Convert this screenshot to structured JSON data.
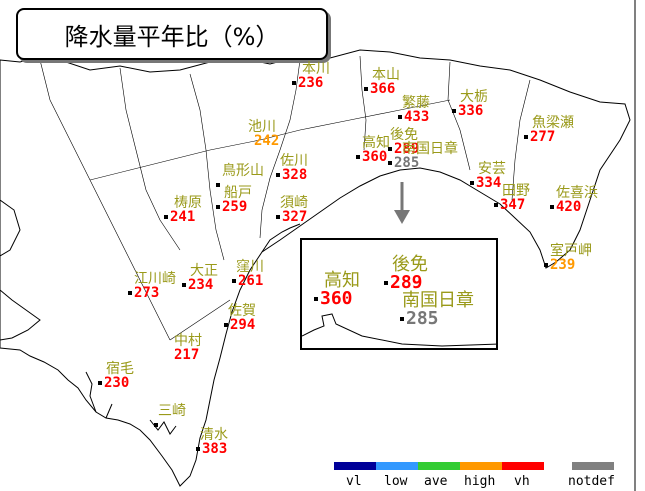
{
  "title": "降水量平年比（%）",
  "stations": [
    {
      "id": "honkawa",
      "name": "本川",
      "value": "236",
      "cat": "vh"
    },
    {
      "id": "motoyama",
      "name": "本山",
      "value": "366",
      "cat": "vh"
    },
    {
      "id": "shigetou",
      "name": "繁藤",
      "value": "433",
      "cat": "vh"
    },
    {
      "id": "otochi",
      "name": "大栃",
      "value": "336",
      "cat": "vh"
    },
    {
      "id": "ikegawa",
      "name": "池川",
      "value": "242",
      "cat": "high"
    },
    {
      "id": "kochi_main",
      "name": "高知",
      "value": "360",
      "cat": "vh"
    },
    {
      "id": "gomen_main",
      "name": "後免",
      "value": "289",
      "cat": "vh"
    },
    {
      "id": "nankoku_main",
      "name": "南国日章",
      "value": "285",
      "cat": "nd"
    },
    {
      "id": "yanase",
      "name": "魚梁瀬",
      "value": "277",
      "cat": "vh"
    },
    {
      "id": "torigatayama",
      "name": "鳥形山",
      "value": "",
      "cat": "vh"
    },
    {
      "id": "sagawa",
      "name": "佐川",
      "value": "328",
      "cat": "vh"
    },
    {
      "id": "nosato",
      "name": "船戸",
      "value": "259",
      "cat": "vh"
    },
    {
      "id": "yusuhara",
      "name": "梼原",
      "value": "241",
      "cat": "vh"
    },
    {
      "id": "susaki",
      "name": "須崎",
      "value": "327",
      "cat": "vh"
    },
    {
      "id": "aki",
      "name": "安芸",
      "value": "334",
      "cat": "vh"
    },
    {
      "id": "tano",
      "name": "田野",
      "value": "347",
      "cat": "vh"
    },
    {
      "id": "sakihama",
      "name": "佐喜浜",
      "value": "420",
      "cat": "vh"
    },
    {
      "id": "muroto",
      "name": "室戸岬",
      "value": "239",
      "cat": "high"
    },
    {
      "id": "ekawasaki",
      "name": "江川崎",
      "value": "273",
      "cat": "vh"
    },
    {
      "id": "taisho",
      "name": "大正",
      "value": "234",
      "cat": "vh"
    },
    {
      "id": "kubokawa",
      "name": "窪川",
      "value": "261",
      "cat": "vh"
    },
    {
      "id": "saga",
      "name": "佐賀",
      "value": "294",
      "cat": "vh"
    },
    {
      "id": "nakamura",
      "name": "中村",
      "value": "217",
      "cat": "vh"
    },
    {
      "id": "sukumo",
      "name": "宿毛",
      "value": "230",
      "cat": "vh"
    },
    {
      "id": "misaki",
      "name": "三崎",
      "value": "",
      "cat": "vh"
    },
    {
      "id": "shimizu",
      "name": "清水",
      "value": "383",
      "cat": "vh"
    }
  ],
  "inset": [
    {
      "id": "kochi",
      "name": "高知",
      "value": "360",
      "cat": "vh"
    },
    {
      "id": "gomen",
      "name": "後免",
      "value": "289",
      "cat": "vh"
    },
    {
      "id": "nankoku",
      "name": "南国日章",
      "value": "285",
      "cat": "nd"
    }
  ],
  "legend": [
    {
      "label": "vl",
      "color": "#000099"
    },
    {
      "label": "low",
      "color": "#3399ff"
    },
    {
      "label": "ave",
      "color": "#33cc33"
    },
    {
      "label": "high",
      "color": "#ff9900"
    },
    {
      "label": "vh",
      "color": "#ff0000"
    },
    {
      "label": "notdef",
      "color": "#808080"
    }
  ]
}
